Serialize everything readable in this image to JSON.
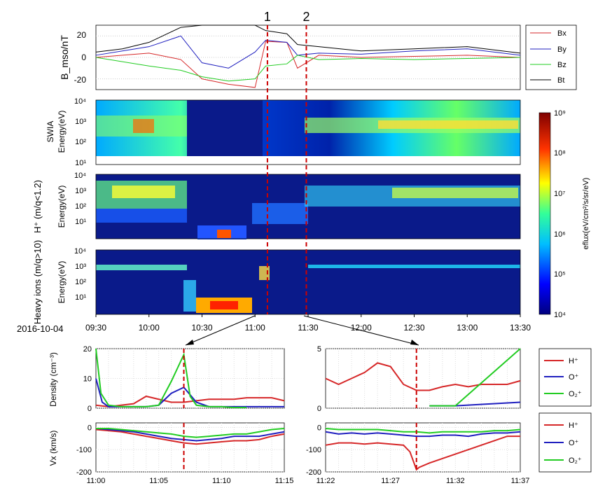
{
  "date_label": "2016-10-04",
  "event_markers": [
    {
      "label": "1",
      "time": "11:07"
    },
    {
      "label": "2",
      "time": "11:29"
    }
  ],
  "colorbar": {
    "label": "eflux(eV/cm²/s/sr/eV)",
    "ticks": [
      "10⁹",
      "10⁸",
      "10⁷",
      "10⁶",
      "10⁵",
      "10⁴"
    ]
  },
  "colors": {
    "red": "#d62728",
    "blue": "#1f1fbf",
    "green": "#22cc22",
    "black": "#000000",
    "marker": "#cc0000"
  },
  "chart_data": [
    {
      "type": "line",
      "panel": "magnetic_field",
      "ylabel": "B_mso/nT",
      "ylim": [
        -30,
        30
      ],
      "yticks": [
        "20",
        "0",
        "-20"
      ],
      "legend": [
        "Bx",
        "By",
        "Bz",
        "Bt"
      ],
      "legend_placement": "right",
      "x_unit": "hours UTC",
      "series": [
        {
          "name": "Bx",
          "color": "#d62728",
          "x": [
            9.5,
            9.75,
            10.0,
            10.3,
            10.5,
            10.75,
            11.0,
            11.1,
            11.3,
            11.4,
            11.6,
            12.0,
            12.5,
            13.0,
            13.5
          ],
          "y": [
            0,
            2,
            4,
            -2,
            -20,
            -25,
            -28,
            15,
            14,
            -10,
            2,
            0,
            1,
            2,
            0
          ]
        },
        {
          "name": "By",
          "color": "#1f1fbf",
          "x": [
            9.5,
            9.75,
            10.0,
            10.3,
            10.5,
            10.75,
            11.0,
            11.1,
            11.3,
            11.4,
            11.6,
            12.0,
            12.5,
            13.0,
            13.5
          ],
          "y": [
            2,
            6,
            10,
            20,
            -5,
            -10,
            5,
            16,
            14,
            2,
            4,
            3,
            6,
            8,
            2
          ]
        },
        {
          "name": "Bz",
          "color": "#22cc22",
          "x": [
            9.5,
            9.75,
            10.0,
            10.3,
            10.5,
            10.75,
            11.0,
            11.1,
            11.3,
            11.4,
            11.6,
            12.0,
            12.5,
            13.0,
            13.5
          ],
          "y": [
            0,
            -4,
            -8,
            -12,
            -18,
            -22,
            -20,
            -8,
            -6,
            2,
            -2,
            -1,
            -2,
            -1,
            0
          ]
        },
        {
          "name": "Bt",
          "color": "#000000",
          "x": [
            9.5,
            9.75,
            10.0,
            10.3,
            10.5,
            10.75,
            11.0,
            11.1,
            11.3,
            11.4,
            11.6,
            12.0,
            12.5,
            13.0,
            13.5
          ],
          "y": [
            5,
            8,
            14,
            28,
            30,
            30,
            30,
            25,
            22,
            12,
            10,
            6,
            8,
            10,
            4
          ]
        }
      ]
    },
    {
      "type": "heatmap",
      "panel": "SWIA",
      "ylabel": "Energy(eV)",
      "title": "SWIA",
      "yticks": [
        "10⁴",
        "10³",
        "10²",
        "10¹"
      ]
    },
    {
      "type": "heatmap",
      "panel": "H+",
      "ylabel": "Energy(eV)",
      "title": "H⁺ (m/q<1.2)",
      "yticks": [
        "10⁴",
        "10³",
        "10²",
        "10¹"
      ]
    },
    {
      "type": "heatmap",
      "panel": "heavy_ions",
      "ylabel": "Energy(eV)",
      "title": "Heavy ions (m/q>10)",
      "yticks": [
        "10⁴",
        "10³",
        "10²",
        "10¹"
      ],
      "xticks": [
        "09:30",
        "10:00",
        "10:30",
        "11:00",
        "11:30",
        "12:00",
        "12:30",
        "13:00",
        "13:30"
      ]
    },
    {
      "type": "line",
      "panel": "density_left",
      "ylabel": "Density (cm⁻³)",
      "ylim": [
        0,
        20
      ],
      "yticks": [
        "20",
        "10",
        "0"
      ],
      "legend": [
        "H⁺",
        "O⁺",
        "O₂⁺"
      ],
      "x_unit": "minutes",
      "series": [
        {
          "name": "H⁺",
          "color": "#d62728",
          "x": [
            0,
            1,
            2,
            3,
            4,
            5,
            6,
            7,
            8,
            9,
            10,
            11,
            12,
            13,
            14,
            15
          ],
          "y": [
            1,
            0.5,
            1,
            1.5,
            4,
            3,
            2,
            2,
            2.5,
            3,
            3,
            3,
            3.5,
            3.5,
            3.5,
            2.5
          ]
        },
        {
          "name": "O⁺",
          "color": "#1f1fbf",
          "x": [
            0,
            0.5,
            1,
            2,
            4,
            5,
            6,
            7,
            8,
            9,
            10,
            11,
            12,
            13,
            14,
            15
          ],
          "y": [
            10,
            2,
            0.5,
            0.5,
            0.5,
            1,
            5,
            7,
            2,
            0.5,
            0.5,
            0.5,
            0.5,
            0.5,
            0.5,
            0.5
          ]
        },
        {
          "name": "O₂⁺",
          "color": "#22cc22",
          "x": [
            0,
            0.4,
            1,
            2,
            4,
            5,
            6,
            7,
            7.5,
            8,
            9,
            10,
            11,
            12
          ],
          "y": [
            20,
            5,
            1,
            0.5,
            0.5,
            1,
            9,
            18,
            4,
            1,
            0.5,
            0.5,
            0.2,
            0.2
          ]
        }
      ]
    },
    {
      "type": "line",
      "panel": "density_right",
      "ylim": [
        0,
        5
      ],
      "yticks": [
        "5",
        "0"
      ],
      "legend": [
        "H⁺",
        "O⁺",
        "O₂⁺"
      ],
      "x_unit": "minutes",
      "series": [
        {
          "name": "H⁺",
          "color": "#d62728",
          "x": [
            0,
            1,
            2,
            3,
            4,
            5,
            6,
            7,
            8,
            9,
            10,
            11,
            12,
            13,
            14,
            15
          ],
          "y": [
            2.5,
            2,
            2.5,
            3,
            3.8,
            3.5,
            2,
            1.5,
            1.5,
            1.8,
            2,
            1.8,
            2,
            2,
            2,
            2.3
          ]
        },
        {
          "name": "O⁺",
          "color": "#1f1fbf",
          "x": [
            8,
            10,
            15
          ],
          "y": [
            0.2,
            0.2,
            0.5
          ]
        },
        {
          "name": "O₂⁺",
          "color": "#22cc22",
          "x": [
            8,
            10,
            15
          ],
          "y": [
            0.2,
            0.2,
            5
          ]
        }
      ]
    },
    {
      "type": "line",
      "panel": "vx_left",
      "ylabel": "Vx (km/s)",
      "ylim": [
        -200,
        20
      ],
      "yticks": [
        "0",
        "-100",
        "-200"
      ],
      "xticks": [
        "11:00",
        "11:05",
        "11:10",
        "11:15"
      ],
      "legend": [
        "H⁺",
        "O⁺",
        "O₂⁺"
      ],
      "series": [
        {
          "name": "H⁺",
          "color": "#d62728",
          "x": [
            0,
            1,
            2,
            3,
            4,
            5,
            6,
            7,
            8,
            9,
            10,
            11,
            12,
            13,
            14,
            15
          ],
          "y": [
            -10,
            -15,
            -20,
            -30,
            -40,
            -50,
            -60,
            -70,
            -75,
            -70,
            -65,
            -60,
            -60,
            -55,
            -40,
            -30
          ]
        },
        {
          "name": "O⁺",
          "color": "#1f1fbf",
          "x": [
            0,
            1,
            2,
            3,
            4,
            5,
            6,
            7,
            8,
            9,
            10,
            11,
            12,
            13,
            14,
            15
          ],
          "y": [
            -5,
            -10,
            -15,
            -20,
            -30,
            -40,
            -50,
            -55,
            -60,
            -55,
            -50,
            -40,
            -40,
            -40,
            -30,
            -20
          ]
        },
        {
          "name": "O₂⁺",
          "color": "#22cc22",
          "x": [
            0,
            1,
            2,
            3,
            4,
            5,
            6,
            7,
            8,
            9,
            10,
            11,
            12,
            13,
            14,
            15
          ],
          "y": [
            -5,
            -5,
            -10,
            -15,
            -20,
            -25,
            -30,
            -40,
            -45,
            -40,
            -35,
            -30,
            -30,
            -20,
            -10,
            -5
          ]
        }
      ]
    },
    {
      "type": "line",
      "panel": "vx_right",
      "ylim": [
        -200,
        20
      ],
      "yticks": [
        "0",
        "-100",
        "-200"
      ],
      "xticks": [
        "11:22",
        "11:27",
        "11:32",
        "11:37"
      ],
      "legend": [
        "H⁺",
        "O⁺",
        "O₂⁺"
      ],
      "series": [
        {
          "name": "H⁺",
          "color": "#d62728",
          "x": [
            0,
            1,
            2,
            3,
            4,
            5,
            6,
            6.5,
            7,
            7.2,
            8,
            9,
            10,
            11,
            12,
            13,
            14,
            15
          ],
          "y": [
            -80,
            -70,
            -70,
            -75,
            -70,
            -75,
            -80,
            -110,
            -190,
            -180,
            -160,
            -140,
            -120,
            -100,
            -80,
            -60,
            -40,
            -40
          ]
        },
        {
          "name": "O⁺",
          "color": "#1f1fbf",
          "x": [
            0,
            1,
            2,
            3,
            4,
            5,
            6,
            7,
            8,
            9,
            10,
            11,
            12,
            13,
            14,
            15
          ],
          "y": [
            -20,
            -30,
            -25,
            -30,
            -25,
            -30,
            -35,
            -40,
            -40,
            -35,
            -35,
            -40,
            -30,
            -25,
            -25,
            -20
          ]
        },
        {
          "name": "O₂⁺",
          "color": "#22cc22",
          "x": [
            0,
            1,
            2,
            3,
            4,
            5,
            6,
            7,
            8,
            9,
            10,
            11,
            12,
            13,
            14,
            15
          ],
          "y": [
            -5,
            -10,
            -10,
            -10,
            -10,
            -15,
            -20,
            -20,
            -25,
            -20,
            -20,
            -20,
            -20,
            -15,
            -15,
            -10
          ]
        }
      ]
    }
  ],
  "zoom_markers": {
    "left_min": 7,
    "right_min": 7
  }
}
